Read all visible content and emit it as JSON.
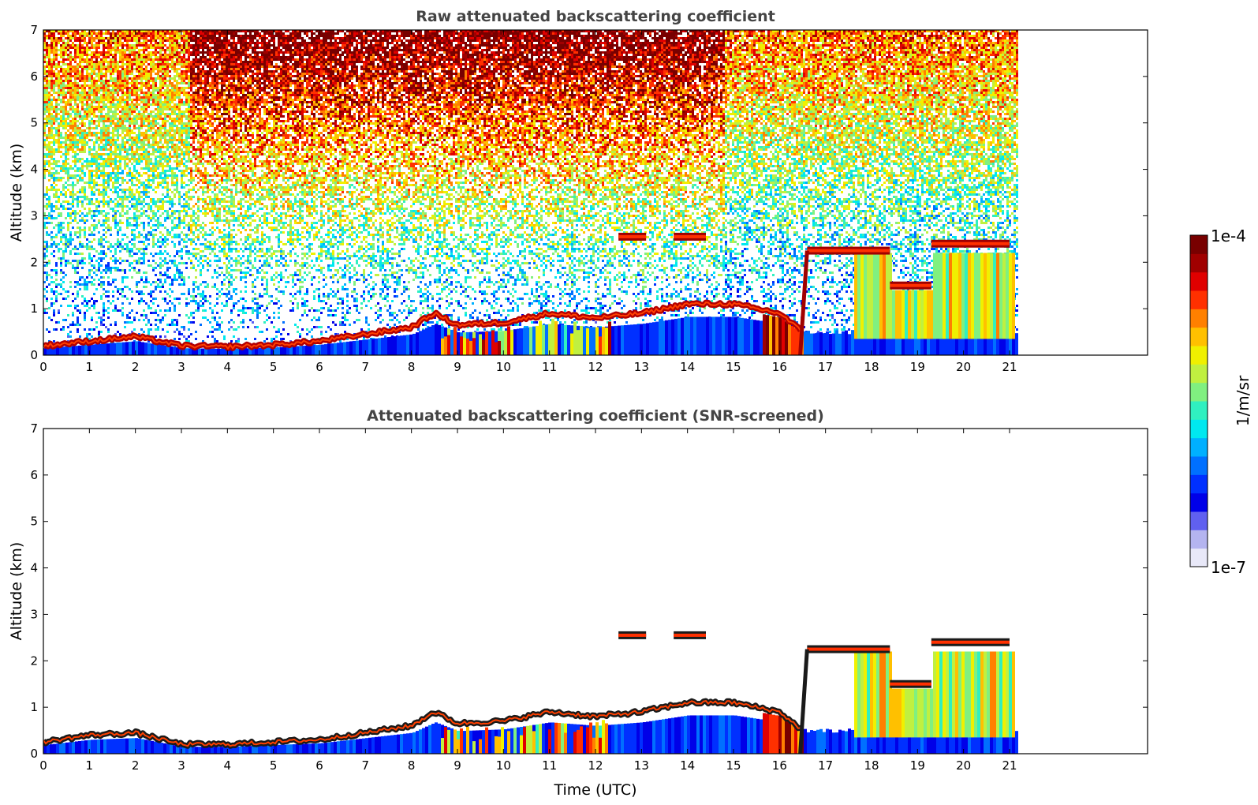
{
  "chart_data": [
    {
      "type": "heatmap",
      "title": "Raw attenuated backscattering coefficient",
      "xlabel": "",
      "ylabel": "Altitude (km)",
      "xlim": [
        0,
        24
      ],
      "ylim": [
        0,
        7
      ],
      "x_ticks": [
        "0",
        "1",
        "2",
        "3",
        "4",
        "5",
        "6",
        "7",
        "8",
        "9",
        "10",
        "11",
        "12",
        "13",
        "14",
        "15",
        "16",
        "17",
        "18",
        "19",
        "20",
        "21"
      ],
      "y_ticks": [
        "0",
        "1",
        "2",
        "3",
        "4",
        "5",
        "6",
        "7"
      ],
      "data_extent_x": [
        0,
        21.15
      ],
      "grid": false,
      "colormap": "jet",
      "boundary_layer_top": [
        [
          0,
          0.2
        ],
        [
          1,
          0.3
        ],
        [
          2,
          0.4
        ],
        [
          3,
          0.2
        ],
        [
          4,
          0.18
        ],
        [
          5,
          0.22
        ],
        [
          6,
          0.3
        ],
        [
          7,
          0.45
        ],
        [
          8,
          0.6
        ],
        [
          8.5,
          0.9
        ],
        [
          9,
          0.65
        ],
        [
          10,
          0.7
        ],
        [
          11,
          0.9
        ],
        [
          12,
          0.8
        ],
        [
          13,
          0.9
        ],
        [
          14,
          1.1
        ],
        [
          15,
          1.1
        ],
        [
          16,
          0.9
        ],
        [
          16.5,
          0.5
        ]
      ],
      "cloud_layers": [
        {
          "x_start": 12.5,
          "x_end": 13.1,
          "altitude": 2.55
        },
        {
          "x_start": 13.7,
          "x_end": 14.4,
          "altitude": 2.55
        },
        {
          "x_start": 16.6,
          "x_end": 18.4,
          "altitude": 2.25
        },
        {
          "x_start": 18.4,
          "x_end": 19.3,
          "altitude": 1.5
        },
        {
          "x_start": 19.3,
          "x_end": 21.0,
          "altitude": 2.4
        }
      ],
      "noise_high_altitude": true
    },
    {
      "type": "heatmap",
      "title": "Attenuated backscattering coefficient (SNR-screened)",
      "xlabel": "Time (UTC)",
      "ylabel": "Altitude (km)",
      "xlim": [
        0,
        24
      ],
      "ylim": [
        0,
        7
      ],
      "x_ticks": [
        "0",
        "1",
        "2",
        "3",
        "4",
        "5",
        "6",
        "7",
        "8",
        "9",
        "10",
        "11",
        "12",
        "13",
        "14",
        "15",
        "16",
        "17",
        "18",
        "19",
        "20",
        "21"
      ],
      "y_ticks": [
        "0",
        "1",
        "2",
        "3",
        "4",
        "5",
        "6",
        "7"
      ],
      "data_extent_x": [
        0,
        21.15
      ],
      "grid": false,
      "colormap": "jet",
      "boundary_layer_top": [
        [
          0,
          0.25
        ],
        [
          1,
          0.4
        ],
        [
          2,
          0.45
        ],
        [
          3,
          0.2
        ],
        [
          4,
          0.2
        ],
        [
          5,
          0.25
        ],
        [
          6,
          0.3
        ],
        [
          7,
          0.45
        ],
        [
          8,
          0.6
        ],
        [
          8.5,
          0.9
        ],
        [
          9,
          0.65
        ],
        [
          10,
          0.7
        ],
        [
          11,
          0.9
        ],
        [
          12,
          0.8
        ],
        [
          13,
          0.9
        ],
        [
          14,
          1.1
        ],
        [
          15,
          1.1
        ],
        [
          16,
          0.9
        ],
        [
          16.5,
          0.5
        ]
      ],
      "cloud_layers": [
        {
          "x_start": 12.5,
          "x_end": 13.1,
          "altitude": 2.55
        },
        {
          "x_start": 13.7,
          "x_end": 14.4,
          "altitude": 2.55
        },
        {
          "x_start": 16.6,
          "x_end": 18.4,
          "altitude": 2.25
        },
        {
          "x_start": 18.4,
          "x_end": 19.3,
          "altitude": 1.5
        },
        {
          "x_start": 19.3,
          "x_end": 21.0,
          "altitude": 2.4
        }
      ],
      "noise_high_altitude": false
    }
  ],
  "colorbar": {
    "max_label": "1e-4",
    "min_label": "1e-7",
    "unit_label": "1/m/sr",
    "range": [
      1e-07,
      0.0001
    ],
    "scale": "log",
    "colors": [
      "#e8e8f8",
      "#b4b4f0",
      "#6060f0",
      "#0000e8",
      "#0030ff",
      "#0070ff",
      "#00b0ff",
      "#00e8f0",
      "#30f0c0",
      "#80f080",
      "#c0f040",
      "#f0f000",
      "#ffc000",
      "#ff8000",
      "#ff3000",
      "#e00000",
      "#a00000",
      "#780000"
    ]
  }
}
